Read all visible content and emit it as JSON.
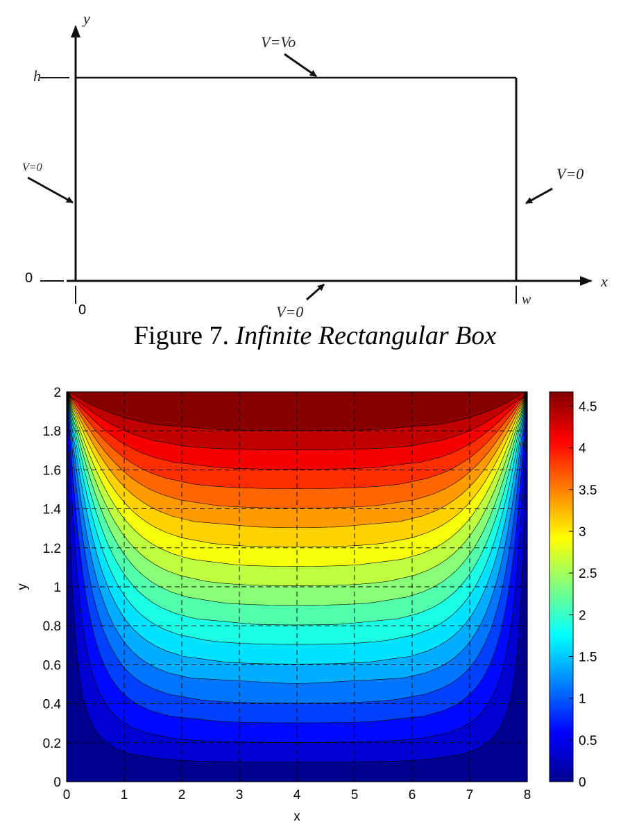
{
  "diagram": {
    "axis_y_label": "y",
    "axis_x_label": "x",
    "h_label": "h",
    "origin_y_label": "0",
    "origin_x_label": "0",
    "w_label": "w",
    "top_boundary": "V=Vo",
    "left_boundary": "V=0",
    "right_boundary": "V=0",
    "bottom_boundary": "V=0"
  },
  "caption": {
    "number": "Figure 7.",
    "title": "Infinite Rectangular Box"
  },
  "chart_data": {
    "type": "heatmap",
    "plot_kind": "filled contour",
    "xlabel": "x",
    "ylabel": "y",
    "xlim": [
      0,
      8
    ],
    "ylim": [
      0,
      2
    ],
    "x_ticks": [
      "0",
      "1",
      "2",
      "3",
      "4",
      "5",
      "6",
      "7",
      "8"
    ],
    "y_ticks": [
      "0",
      "0.2",
      "0.4",
      "0.6",
      "0.8",
      "1",
      "1.2",
      "1.4",
      "1.6",
      "1.8",
      "2"
    ],
    "grid": "dashed",
    "colorbar": {
      "ticks": [
        "0",
        "0.5",
        "1",
        "1.5",
        "2",
        "2.5",
        "3",
        "3.5",
        "4",
        "4.5"
      ],
      "range": [
        0,
        4.67
      ],
      "colormap": "jet"
    },
    "levels": [
      0.25,
      0.5,
      0.75,
      1.0,
      1.25,
      1.5,
      1.75,
      2.0,
      2.25,
      2.5,
      2.75,
      3.0,
      3.25,
      3.5,
      3.75,
      4.0,
      4.25,
      4.5
    ],
    "boundary_conditions": {
      "top": 5,
      "bottom": 0,
      "left": 0,
      "right": 0
    }
  }
}
